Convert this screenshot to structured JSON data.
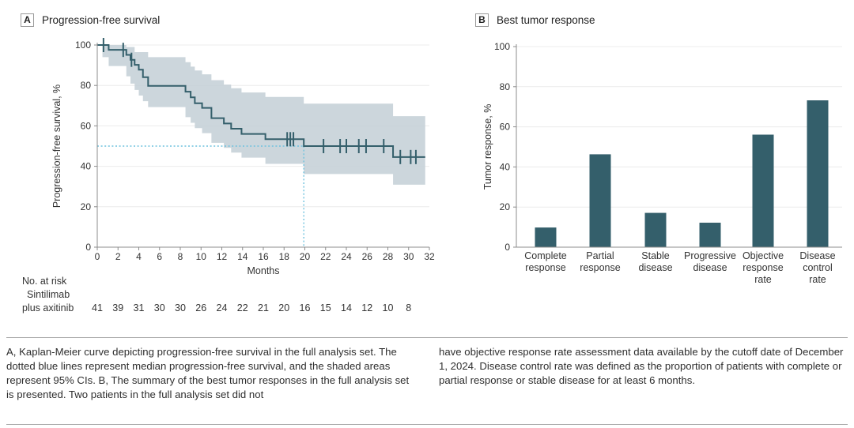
{
  "panels": {
    "a": {
      "letter": "A",
      "title": "Progression-free survival"
    },
    "b": {
      "letter": "B",
      "title": "Best tumor response"
    }
  },
  "caption": {
    "left": "A, Kaplan-Meier curve depicting progression-free survival in the full analysis set. The dotted blue lines represent median progression-free survival, and the shaded areas represent 95% CIs. B, The summary of the best tumor responses in the full analysis set is presented. Two patients in the full analysis set did not",
    "right": "have objective response rate assessment data available by the cutoff date of December 1, 2024. Disease control rate was defined as the proportion of patients with complete or partial response or stable disease for at least 6 months."
  },
  "colors": {
    "curve": "#345F6B",
    "ci_band": "#C7D1D8",
    "median_line": "#6FC2DE",
    "bar": "#345F6B",
    "grid": "#ECECEC",
    "axis": "#8C8C8C",
    "text": "#333333",
    "rule": "#A9A9A9"
  },
  "chart_data": [
    {
      "type": "line",
      "subtype": "kaplan_meier_step",
      "title": "Progression-free survival",
      "xlabel": "Months",
      "ylabel": "Progression-free survival, %",
      "xlim": [
        0,
        32
      ],
      "ylim": [
        0,
        100
      ],
      "x_ticks": [
        0,
        2,
        4,
        6,
        8,
        10,
        12,
        14,
        16,
        18,
        20,
        22,
        24,
        26,
        28,
        30,
        32
      ],
      "y_ticks": [
        0,
        20,
        40,
        60,
        80,
        100
      ],
      "grid": "horizontal",
      "legend": "none",
      "series": [
        {
          "name": "Sintilimab plus axitinib",
          "steps": [
            [
              0,
              100
            ],
            [
              1.1,
              97.6
            ],
            [
              2.8,
              95.1
            ],
            [
              3.2,
              92.7
            ],
            [
              3.6,
              90.2
            ],
            [
              4.0,
              87.8
            ],
            [
              4.4,
              84.1
            ],
            [
              4.9,
              79.8
            ],
            [
              8.5,
              76.9
            ],
            [
              9.0,
              74.1
            ],
            [
              9.4,
              71.2
            ],
            [
              10.1,
              68.9
            ],
            [
              11.0,
              63.8
            ],
            [
              12.2,
              61.2
            ],
            [
              12.9,
              58.6
            ],
            [
              13.9,
              56.0
            ],
            [
              16.2,
              53.4
            ],
            [
              19.9,
              50.0
            ],
            [
              28.5,
              44.6
            ]
          ],
          "end_time": 31.6,
          "censor_marks": [
            [
              0.6,
              100
            ],
            [
              2.5,
              97.6
            ],
            [
              3.3,
              92.7
            ],
            [
              18.3,
              53.4
            ],
            [
              18.6,
              53.4
            ],
            [
              18.9,
              53.4
            ],
            [
              21.8,
              50.0
            ],
            [
              23.4,
              50.0
            ],
            [
              24.0,
              50.0
            ],
            [
              25.2,
              50.0
            ],
            [
              25.9,
              50.0
            ],
            [
              27.6,
              50.0
            ],
            [
              29.2,
              44.6
            ],
            [
              30.2,
              44.6
            ],
            [
              30.7,
              44.6
            ]
          ],
          "ci_upper": [
            [
              0,
              100
            ],
            [
              2.8,
              99.0
            ],
            [
              3.6,
              96.5
            ],
            [
              4.9,
              94.0
            ],
            [
              8.5,
              91.5
            ],
            [
              9.0,
              89.3
            ],
            [
              9.4,
              87.4
            ],
            [
              10.1,
              85.5
            ],
            [
              11.0,
              82.6
            ],
            [
              12.2,
              80.4
            ],
            [
              12.9,
              78.6
            ],
            [
              13.9,
              76.5
            ],
            [
              16.2,
              74.3
            ],
            [
              19.9,
              71.0
            ],
            [
              28.5,
              64.8
            ]
          ],
          "ci_lower": [
            [
              0,
              100
            ],
            [
              0.5,
              94.0
            ],
            [
              1.1,
              89.6
            ],
            [
              2.8,
              84.5
            ],
            [
              3.2,
              80.9
            ],
            [
              3.6,
              77.8
            ],
            [
              4.0,
              75.0
            ],
            [
              4.4,
              72.2
            ],
            [
              4.9,
              69.3
            ],
            [
              8.5,
              64.3
            ],
            [
              9.0,
              61.5
            ],
            [
              9.4,
              58.9
            ],
            [
              10.1,
              56.4
            ],
            [
              11.0,
              51.6
            ],
            [
              12.2,
              49.1
            ],
            [
              12.9,
              46.8
            ],
            [
              13.9,
              44.3
            ],
            [
              16.2,
              41.2
            ],
            [
              19.9,
              36.2
            ],
            [
              28.5,
              30.9
            ]
          ]
        }
      ],
      "median_pfs": {
        "months": 19.9,
        "survival_pct": 50
      },
      "risk_table": {
        "header": "No. at risk",
        "group": "Sintilimab plus axitinib",
        "group_lines": [
          "Sintilimab",
          "plus axitinib"
        ],
        "times": [
          0,
          2,
          4,
          6,
          8,
          10,
          12,
          14,
          16,
          18,
          20,
          22,
          24,
          26,
          28,
          30
        ],
        "values": [
          41,
          39,
          31,
          30,
          30,
          26,
          24,
          22,
          21,
          20,
          16,
          15,
          14,
          12,
          10,
          8
        ]
      }
    },
    {
      "type": "bar",
      "title": "Best tumor response",
      "xlabel": "",
      "ylabel": "Tumor response, %",
      "ylim": [
        0,
        100
      ],
      "y_ticks": [
        0,
        20,
        40,
        60,
        80,
        100
      ],
      "grid": "horizontal",
      "categories": [
        "Complete response",
        "Partial response",
        "Stable disease",
        "Progressive disease",
        "Objective response rate",
        "Disease control rate"
      ],
      "category_label_lines": [
        [
          "Complete",
          "response"
        ],
        [
          "Partial",
          "response"
        ],
        [
          "Stable",
          "disease"
        ],
        [
          "Progressive",
          "disease"
        ],
        [
          "Objective",
          "response",
          "rate"
        ],
        [
          "Disease",
          "control",
          "rate"
        ]
      ],
      "values": [
        9.8,
        46.3,
        17.1,
        12.2,
        56.1,
        73.2
      ]
    }
  ]
}
